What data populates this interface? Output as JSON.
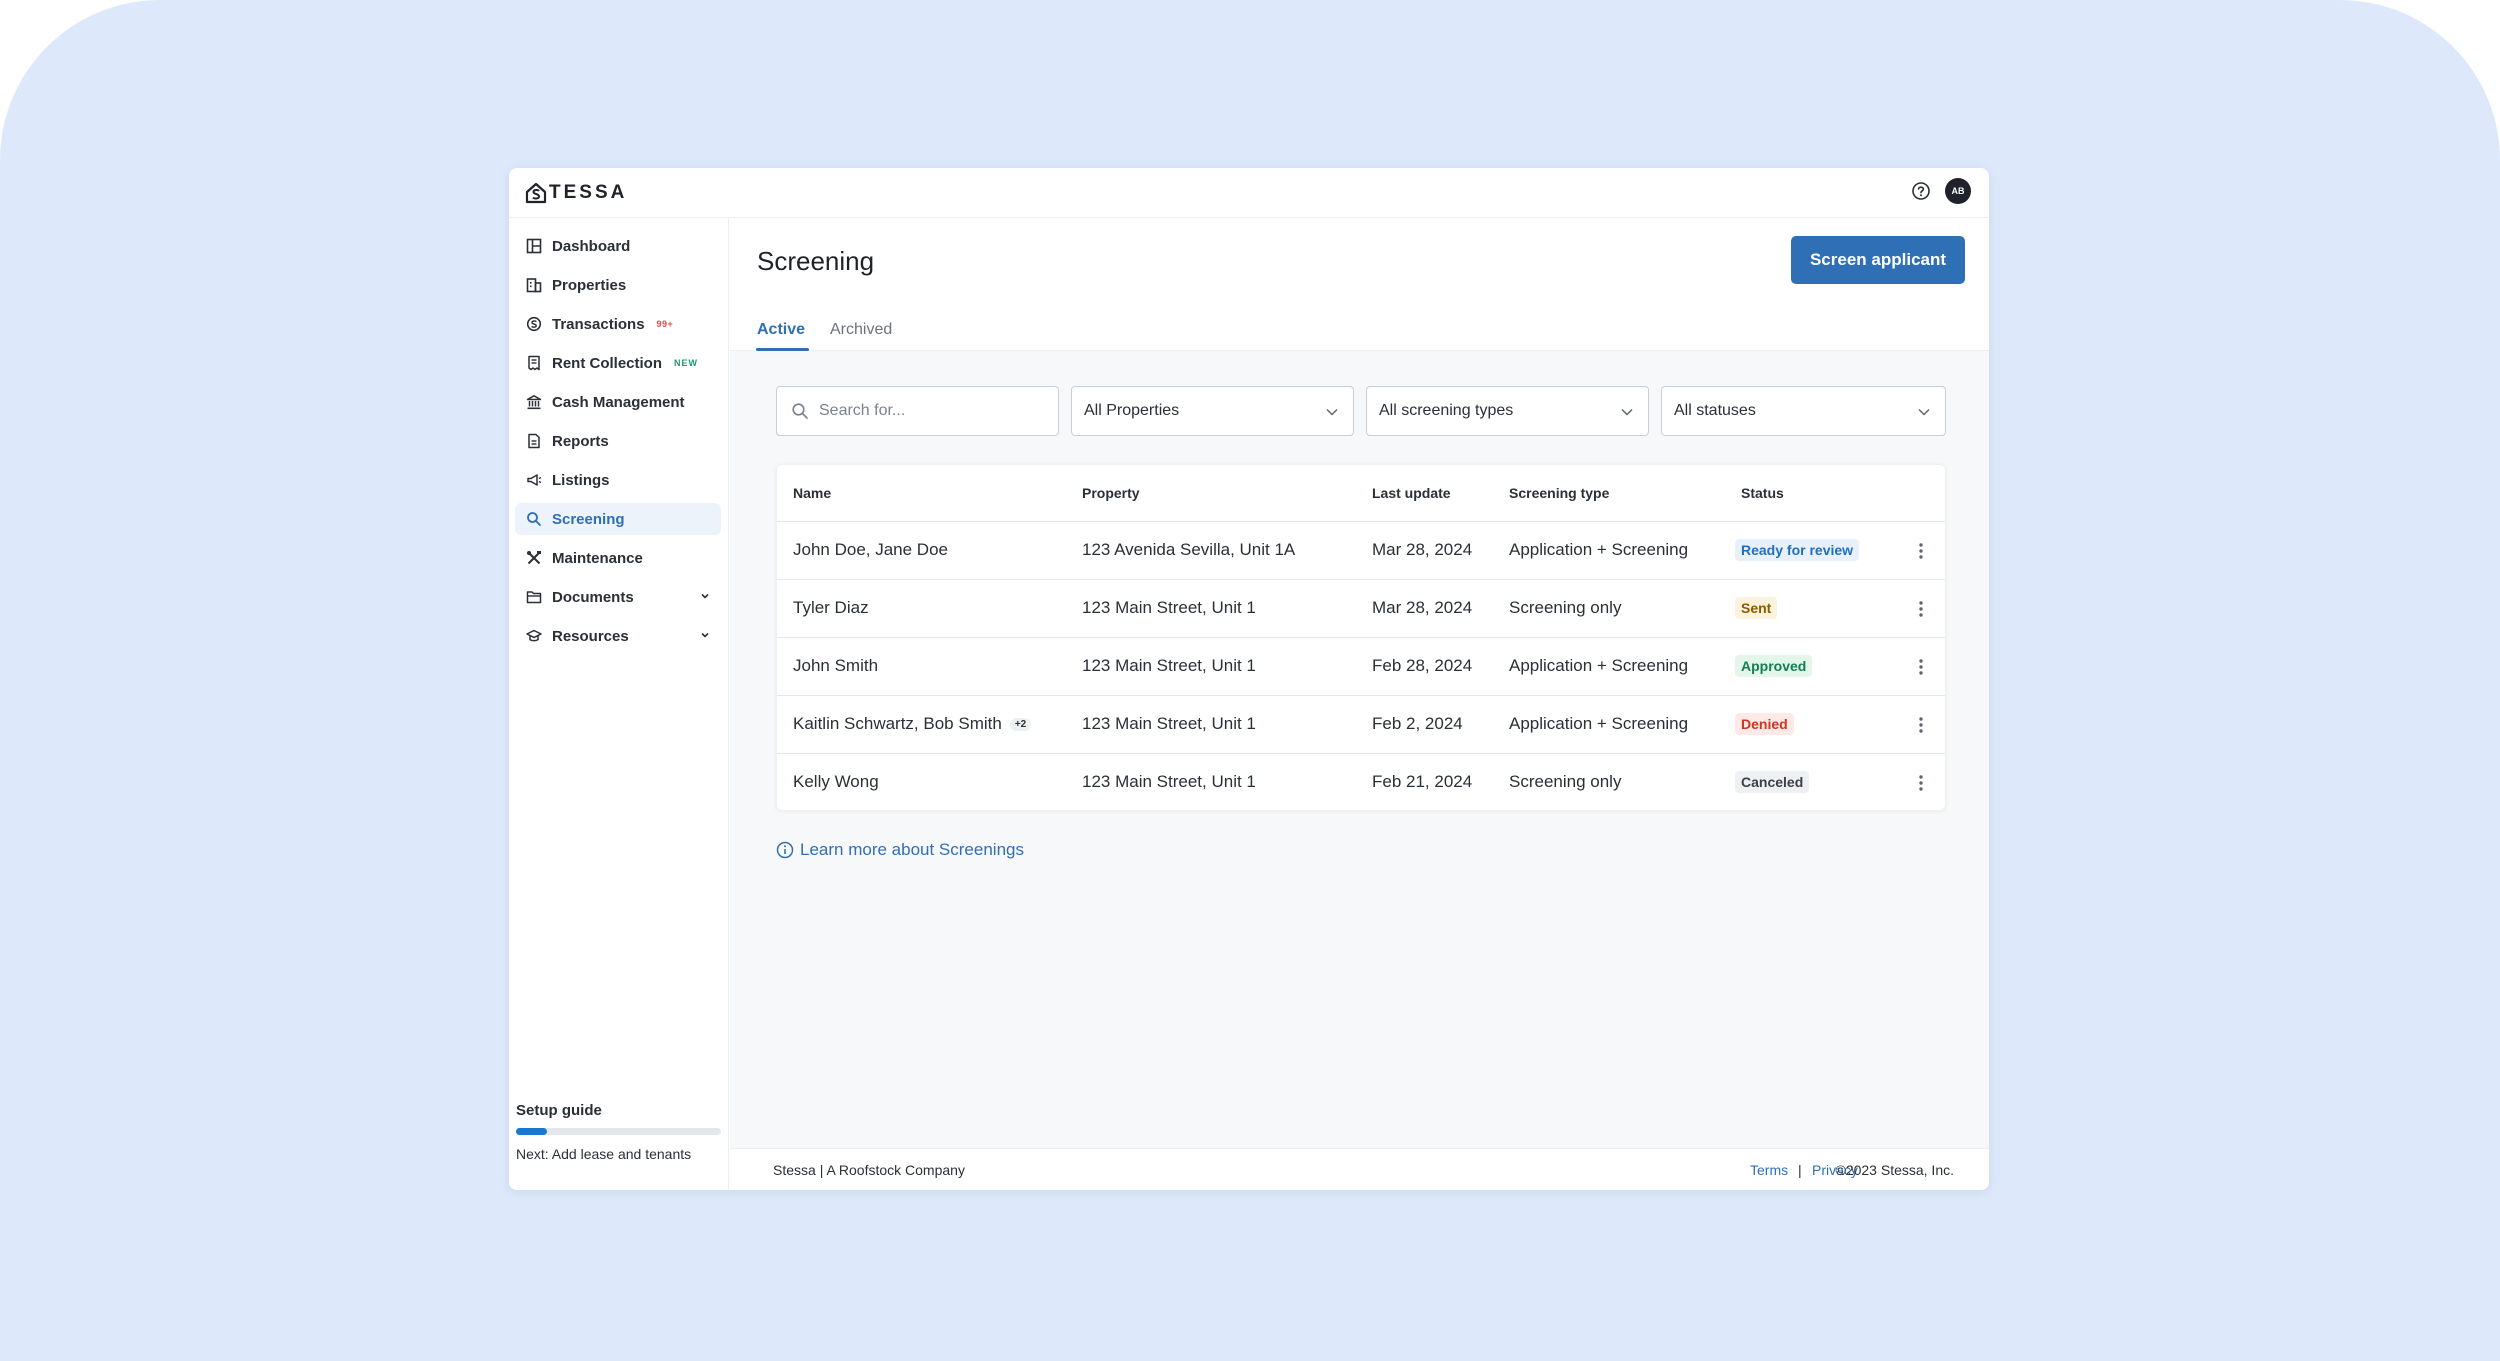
{
  "brand": {
    "name": "TESSA"
  },
  "header": {
    "avatar_initials": "AB"
  },
  "sidebar": {
    "items": [
      {
        "label": "Dashboard"
      },
      {
        "label": "Properties"
      },
      {
        "label": "Transactions",
        "badge": "99+"
      },
      {
        "label": "Rent Collection",
        "badge": "NEW"
      },
      {
        "label": "Cash Management"
      },
      {
        "label": "Reports"
      },
      {
        "label": "Listings"
      },
      {
        "label": "Screening",
        "active": true
      },
      {
        "label": "Maintenance"
      },
      {
        "label": "Documents"
      },
      {
        "label": "Resources"
      }
    ],
    "setup": {
      "title": "Setup guide",
      "next": "Next: Add lease and tenants",
      "progress": 0.15
    }
  },
  "page": {
    "title": "Screening",
    "primary_button": "Screen applicant",
    "tabs": [
      {
        "label": "Active",
        "active": true
      },
      {
        "label": "Archived"
      }
    ],
    "filters": {
      "search_placeholder": "Search for...",
      "properties": "All Properties",
      "screening_types": "All screening types",
      "statuses": "All statuses"
    },
    "table": {
      "columns": [
        "Name",
        "Property",
        "Last update",
        "Screening type",
        "Status"
      ],
      "rows": [
        {
          "name": "John Doe, Jane Doe",
          "extra": "",
          "property": "123 Avenida Sevilla, Unit 1A",
          "last_update": "Mar 28, 2024",
          "type": "Application + Screening",
          "status": "Ready for review"
        },
        {
          "name": "Tyler Diaz",
          "extra": "",
          "property": "123 Main Street, Unit 1",
          "last_update": "Mar 28, 2024",
          "type": "Screening only",
          "status": "Sent"
        },
        {
          "name": "John Smith",
          "extra": "",
          "property": "123 Main Street, Unit 1",
          "last_update": "Feb 28, 2024",
          "type": "Application + Screening",
          "status": "Approved"
        },
        {
          "name": "Kaitlin Schwartz, Bob Smith",
          "extra": "+2",
          "property": "123 Main Street, Unit 1",
          "last_update": "Feb 2, 2024",
          "type": "Application + Screening",
          "status": "Denied"
        },
        {
          "name": "Kelly Wong",
          "extra": "",
          "property": "123 Main Street, Unit 1",
          "last_update": "Feb 21, 2024",
          "type": "Screening only",
          "status": "Canceled"
        }
      ]
    },
    "learn_more": "Learn more about Screenings"
  },
  "footer": {
    "company": "Stessa | A Roofstock Company",
    "terms": "Terms",
    "separator": "|",
    "privacy": "Privacy",
    "copyright": "©2023 Stessa, Inc."
  },
  "colors": {
    "accent": "#2f6fb5",
    "status_ready": {
      "fg": "#1f6fbf",
      "bg": "#e8f1fb"
    },
    "status_sent": {
      "fg": "#8a5a00",
      "bg": "#fdf3dc"
    },
    "status_approved": {
      "fg": "#12804e",
      "bg": "#e4f5ec"
    },
    "status_denied": {
      "fg": "#d1331f",
      "bg": "#fde9e6"
    },
    "status_canceled": {
      "fg": "#3b4048",
      "bg": "#eef0f3"
    }
  }
}
